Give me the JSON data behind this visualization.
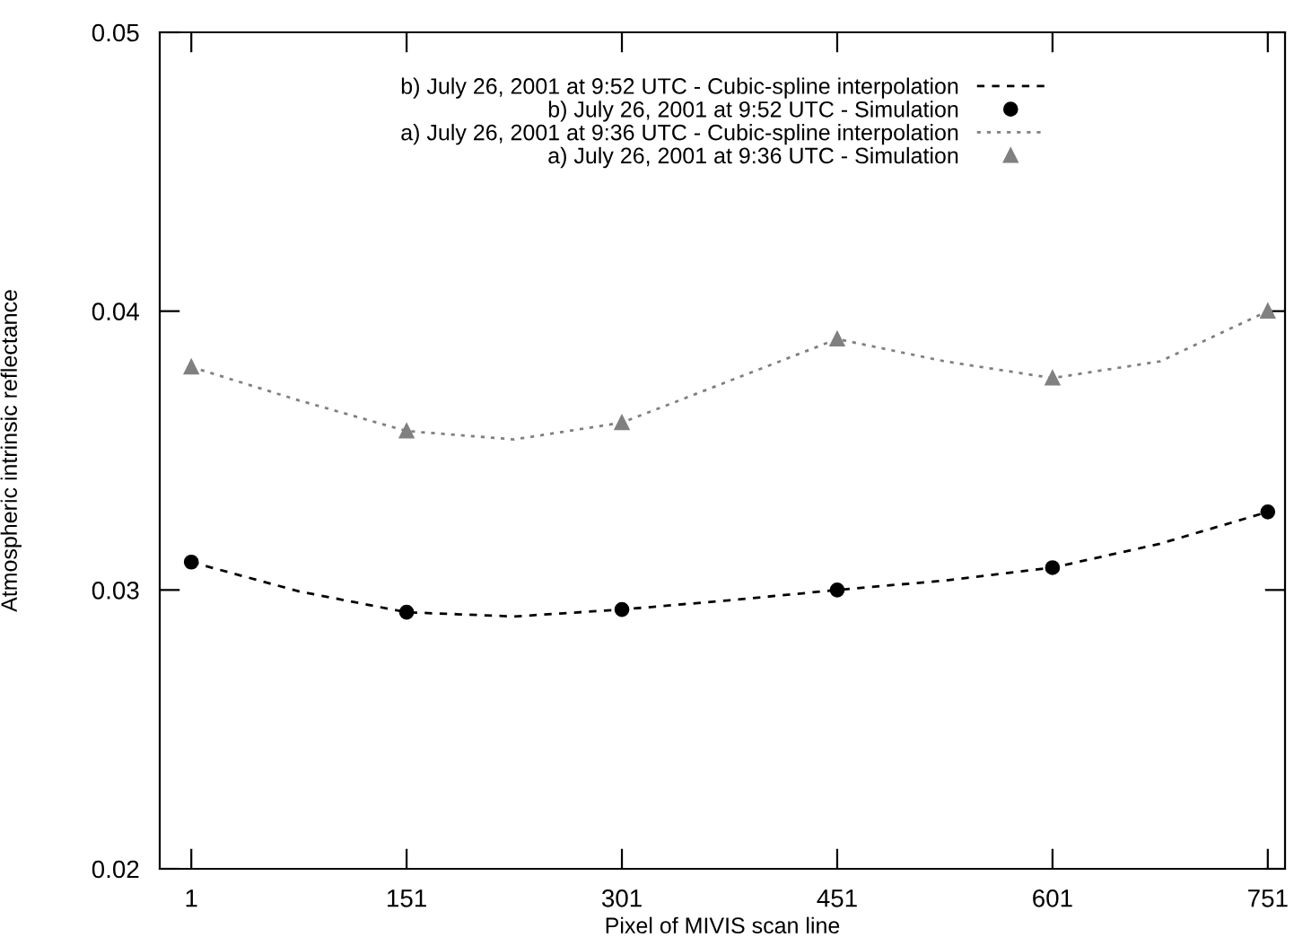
{
  "chart_data": {
    "type": "line",
    "xlabel": "Pixel of MIVIS scan line",
    "ylabel": "Atmospheric intrinsic reflectance",
    "xlim": [
      -21,
      763
    ],
    "ylim": [
      0.02,
      0.05
    ],
    "xticks": [
      1,
      151,
      301,
      451,
      601,
      751
    ],
    "yticks": [
      {
        "value": 0.02,
        "label": "0.02"
      },
      {
        "value": 0.03,
        "label": "0.03"
      },
      {
        "value": 0.04,
        "label": "0.04"
      },
      {
        "value": 0.05,
        "label": "0.05"
      }
    ],
    "grid": false,
    "legend": "top",
    "series": [
      {
        "name": "b) July 26, 2001 at 9:52 UTC - Cubic-spline interpolation",
        "color": "#000000",
        "line_style": "dashed",
        "marker": "none",
        "x": [
          1,
          76,
          151,
          226,
          301,
          376,
          451,
          526,
          601,
          676,
          751
        ],
        "values": [
          0.031,
          0.02995,
          0.0292,
          0.02905,
          0.0293,
          0.02963,
          0.03,
          0.03034,
          0.0308,
          0.03166,
          0.0328
        ]
      },
      {
        "name": "b) July 26, 2001 at 9:52 UTC - Simulation",
        "type": "scatter",
        "color": "#000000",
        "marker": "circle",
        "x": [
          1,
          151,
          301,
          451,
          601,
          751
        ],
        "values": [
          0.031,
          0.0292,
          0.0293,
          0.03,
          0.0308,
          0.0328
        ]
      },
      {
        "name": "a) July 26, 2001 at 9:36 UTC - Cubic-spline interpolation",
        "color": "#808080",
        "line_style": "dotted",
        "marker": "none",
        "x": [
          1,
          76,
          151,
          226,
          301,
          376,
          451,
          526,
          601,
          676,
          751
        ],
        "values": [
          0.038,
          0.0368,
          0.0357,
          0.0354,
          0.036,
          0.0375,
          0.039,
          0.0382,
          0.0376,
          0.0382,
          0.04
        ]
      },
      {
        "name": "a) July 26, 2001 at 9:36 UTC - Simulation",
        "type": "scatter",
        "color": "#808080",
        "marker": "triangle",
        "x": [
          1,
          151,
          301,
          451,
          601,
          751
        ],
        "values": [
          0.038,
          0.0357,
          0.036,
          0.039,
          0.0376,
          0.04
        ]
      }
    ]
  }
}
